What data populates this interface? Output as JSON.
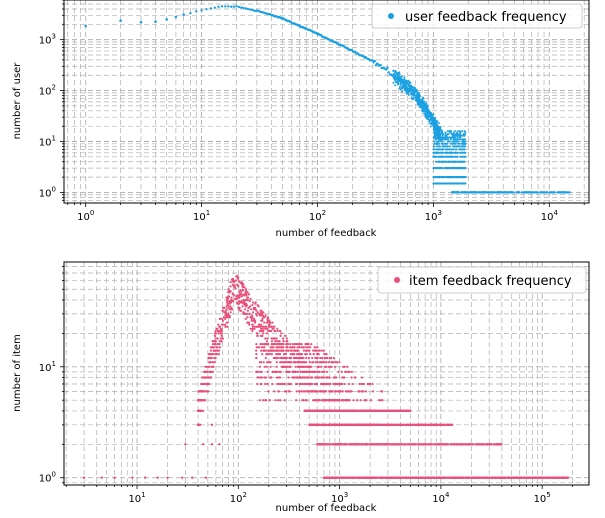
{
  "chart_data": [
    {
      "type": "scatter",
      "xscale": "log",
      "yscale": "log",
      "xlabel": "number of feedback",
      "ylabel": "number of user",
      "xlim": [
        0.65,
        22000
      ],
      "ylim": [
        0.62,
        6000
      ],
      "xticks": [
        {
          "value": 1,
          "base": "10",
          "exp": "0"
        },
        {
          "value": 10,
          "base": "10",
          "exp": "1"
        },
        {
          "value": 100,
          "base": "10",
          "exp": "2"
        },
        {
          "value": 1000,
          "base": "10",
          "exp": "3"
        },
        {
          "value": 10000,
          "base": "10",
          "exp": "4"
        }
      ],
      "yticks": [
        {
          "value": 1,
          "base": "10",
          "exp": "0"
        },
        {
          "value": 10,
          "base": "10",
          "exp": "1"
        },
        {
          "value": 100,
          "base": "10",
          "exp": "2"
        },
        {
          "value": 1000,
          "base": "10",
          "exp": "3"
        }
      ],
      "grid": true,
      "legend_position": "top-right",
      "series": [
        {
          "name": "user feedback frequency",
          "color": "#1ba1e2",
          "curve": [
            [
              2,
              2350
            ],
            [
              3,
              2250
            ],
            [
              5,
              2550
            ],
            [
              8,
              3300
            ],
            [
              12,
              4100
            ],
            [
              15,
              4500
            ],
            [
              20,
              4450
            ],
            [
              30,
              3700
            ],
            [
              50,
              2600
            ],
            [
              100,
              1300
            ],
            [
              200,
              600
            ],
            [
              300,
              380
            ],
            [
              500,
              170
            ],
            [
              700,
              85
            ],
            [
              1000,
              25
            ],
            [
              1200,
              10
            ]
          ],
          "isolated_points": [
            [
              1,
              1850
            ],
            [
              2,
              2350
            ],
            [
              3,
              2200
            ],
            [
              4,
              2250
            ],
            [
              5,
              2500
            ],
            [
              6,
              2800
            ],
            [
              7,
              3100
            ]
          ],
          "noise_region": {
            "x_from": 1000,
            "x_to": 1900,
            "y_from": 2,
            "y_to": 8
          },
          "bottom_row": {
            "y": 1,
            "x_from": 1450,
            "x_to": 15000
          }
        }
      ]
    },
    {
      "type": "scatter",
      "xscale": "log",
      "yscale": "log",
      "xlabel": "number of feedback",
      "ylabel": "number of item",
      "xlim": [
        1.9,
        290000
      ],
      "ylim": [
        0.86,
        88
      ],
      "xticks": [
        {
          "value": 10,
          "base": "10",
          "exp": "1"
        },
        {
          "value": 100,
          "base": "10",
          "exp": "2"
        },
        {
          "value": 1000,
          "base": "10",
          "exp": "3"
        },
        {
          "value": 10000,
          "base": "10",
          "exp": "4"
        },
        {
          "value": 100000,
          "base": "10",
          "exp": "5"
        }
      ],
      "yticks": [
        {
          "value": 1,
          "base": "10",
          "exp": "0"
        },
        {
          "value": 10,
          "base": "10",
          "exp": "1"
        }
      ],
      "grid": true,
      "legend_position": "top-right",
      "series": [
        {
          "name": "item feedback frequency",
          "color": "#e8507a",
          "peak": {
            "x": 95,
            "y": 65
          },
          "cloud": [
            [
              40,
              5
            ],
            [
              55,
              15
            ],
            [
              70,
              30
            ],
            [
              85,
              55
            ],
            [
              95,
              65
            ],
            [
              120,
              45
            ],
            [
              200,
              25
            ],
            [
              400,
              12
            ],
            [
              800,
              6
            ],
            [
              1500,
              4
            ]
          ],
          "spread_rows": [
            {
              "y": 1,
              "x_from": 700,
              "x_to": 180000
            },
            {
              "y": 2,
              "x_from": 600,
              "x_to": 40000
            },
            {
              "y": 3,
              "x_from": 500,
              "x_to": 13000
            },
            {
              "y": 4,
              "x_from": 450,
              "x_to": 5000
            }
          ],
          "sparse_low": [
            [
              3,
              1
            ],
            [
              4.5,
              1
            ],
            [
              6,
              1
            ],
            [
              9,
              1
            ],
            [
              12,
              1
            ],
            [
              16,
              1
            ],
            [
              20,
              1
            ],
            [
              28,
              1
            ],
            [
              35,
              1
            ],
            [
              48,
              1
            ],
            [
              30,
              2
            ],
            [
              45,
              2
            ],
            [
              55,
              2
            ],
            [
              65,
              2
            ],
            [
              40,
              3
            ],
            [
              55,
              3
            ]
          ]
        }
      ]
    }
  ]
}
